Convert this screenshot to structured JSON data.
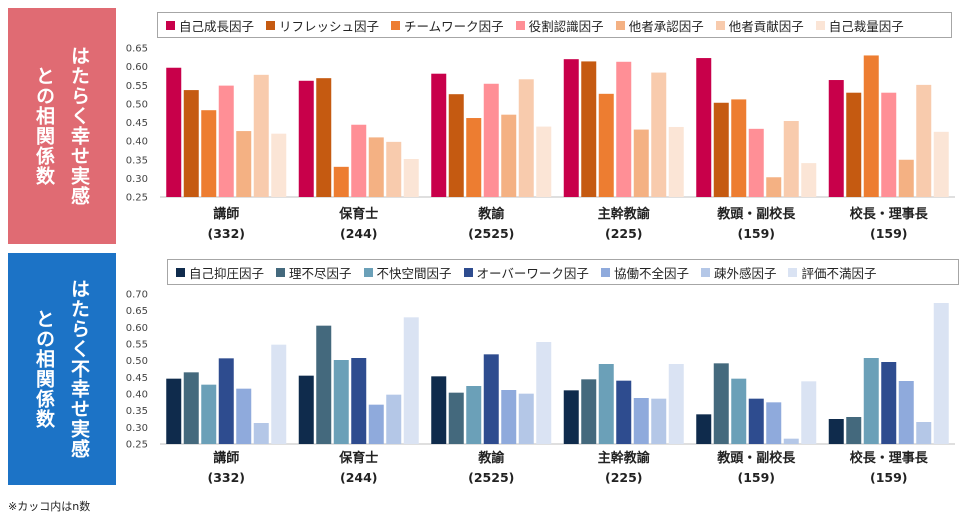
{
  "sidebar": {
    "happy_lines": [
      "はたらく幸せ実感",
      "との相関係数"
    ],
    "unhappy_lines": [
      "はたらく不幸せ実感",
      "との相関係数"
    ]
  },
  "note": "※カッコ内はn数",
  "chart_data": [
    {
      "type": "bar",
      "title": "はたらく幸せ実感との相関係数",
      "categories": [
        "講師",
        "保育士",
        "教諭",
        "主幹教諭",
        "教頭・副校長",
        "校長・理事長"
      ],
      "category_n": [
        "(332)",
        "(244)",
        "(2525)",
        "(225)",
        "(159)",
        "(159)"
      ],
      "ylim": [
        0.25,
        0.65
      ],
      "yticks": [
        "0.65",
        "0.60",
        "0.55",
        "0.50",
        "0.45",
        "0.40",
        "0.35",
        "0.30",
        "0.25"
      ],
      "legend_position": "top",
      "series": [
        {
          "name": "自己成長因子",
          "color": "#c8004a",
          "values": [
            0.597,
            0.562,
            0.581,
            0.62,
            0.623,
            0.564
          ]
        },
        {
          "name": "リフレッシュ因子",
          "color": "#c55a11",
          "values": [
            0.537,
            0.569,
            0.526,
            0.614,
            0.503,
            0.53
          ]
        },
        {
          "name": "チームワーク因子",
          "color": "#ed7d31",
          "values": [
            0.483,
            0.331,
            0.462,
            0.527,
            0.512,
            0.63
          ]
        },
        {
          "name": "役割認識因子",
          "color": "#ff8f96",
          "values": [
            0.549,
            0.444,
            0.554,
            0.613,
            0.433,
            0.53
          ]
        },
        {
          "name": "他者承認因子",
          "color": "#f4b183",
          "values": [
            0.427,
            0.41,
            0.471,
            0.431,
            0.303,
            0.35
          ]
        },
        {
          "name": "他者貢献因子",
          "color": "#f8cbad",
          "values": [
            0.578,
            0.398,
            0.566,
            0.584,
            0.454,
            0.551
          ]
        },
        {
          "name": "自己裁量因子",
          "color": "#fbe5d6",
          "values": [
            0.42,
            0.352,
            0.439,
            0.438,
            0.341,
            0.425
          ]
        }
      ]
    },
    {
      "type": "bar",
      "title": "はたらく不幸せ実感との相関係数",
      "categories": [
        "講師",
        "保育士",
        "教諭",
        "主幹教諭",
        "教頭・副校長",
        "校長・理事長"
      ],
      "category_n": [
        "(332)",
        "(244)",
        "(2525)",
        "(225)",
        "(159)",
        "(159)"
      ],
      "ylim": [
        0.25,
        0.7
      ],
      "yticks": [
        "0.70",
        "0.65",
        "0.60",
        "0.55",
        "0.50",
        "0.45",
        "0.40",
        "0.35",
        "0.30",
        "0.25"
      ],
      "legend_position": "top",
      "series": [
        {
          "name": "自己抑圧因子",
          "color": "#0f2b4c",
          "values": [
            0.446,
            0.455,
            0.453,
            0.411,
            0.339,
            0.325
          ]
        },
        {
          "name": "理不尽因子",
          "color": "#44697d",
          "values": [
            0.465,
            0.605,
            0.404,
            0.444,
            0.492,
            0.331
          ]
        },
        {
          "name": "不快空間因子",
          "color": "#6ba0b8",
          "values": [
            0.428,
            0.502,
            0.424,
            0.49,
            0.446,
            0.508
          ]
        },
        {
          "name": "オーバーワーク因子",
          "color": "#2e4c8f",
          "values": [
            0.507,
            0.508,
            0.519,
            0.44,
            0.386,
            0.496
          ]
        },
        {
          "name": "協働不全因子",
          "color": "#8faadc",
          "values": [
            0.416,
            0.368,
            0.412,
            0.388,
            0.375,
            0.439
          ]
        },
        {
          "name": "疎外感因子",
          "color": "#b4c7e7",
          "values": [
            0.313,
            0.398,
            0.401,
            0.386,
            0.266,
            0.316
          ]
        },
        {
          "name": "評価不満因子",
          "color": "#dae3f3",
          "values": [
            0.548,
            0.63,
            0.556,
            0.49,
            0.438,
            0.673
          ]
        }
      ]
    }
  ]
}
